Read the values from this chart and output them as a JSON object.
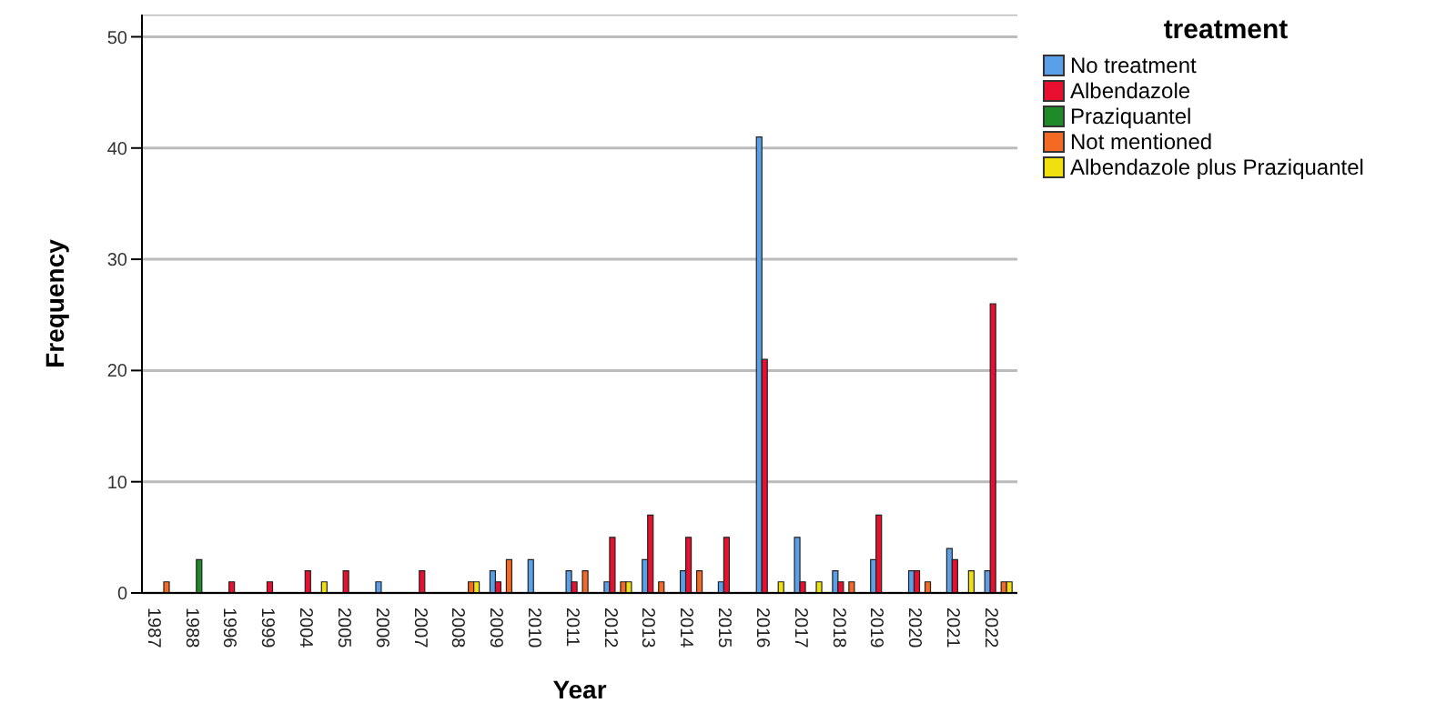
{
  "chart_data": {
    "type": "bar",
    "xlabel": "Year",
    "ylabel": "Frequency",
    "legend_title": "treatment",
    "legend": "top right",
    "grid": "y",
    "categories": [
      "1987",
      "1988",
      "1996",
      "1999",
      "2004",
      "2005",
      "2006",
      "2007",
      "2008",
      "2009",
      "2010",
      "2011",
      "2012",
      "2013",
      "2014",
      "2015",
      "2016",
      "2017",
      "2018",
      "2019",
      "2020",
      "2021",
      "2022"
    ],
    "ylim": [
      0,
      52
    ],
    "yticks": [
      0,
      10,
      20,
      30,
      40,
      50
    ],
    "series": [
      {
        "name": "No treatment",
        "color": "#5aa0e8",
        "values": [
          null,
          null,
          null,
          null,
          null,
          null,
          1,
          null,
          null,
          2,
          3,
          2,
          1,
          3,
          2,
          1,
          41,
          5,
          2,
          3,
          2,
          4,
          2
        ]
      },
      {
        "name": "Albendazole",
        "color": "#e8102e",
        "values": [
          null,
          null,
          1,
          1,
          2,
          2,
          null,
          2,
          null,
          1,
          null,
          1,
          5,
          7,
          5,
          5,
          21,
          1,
          1,
          7,
          2,
          3,
          26
        ]
      },
      {
        "name": "Praziquantel",
        "color": "#1e8a28",
        "values": [
          null,
          3,
          null,
          null,
          null,
          null,
          null,
          null,
          null,
          null,
          null,
          null,
          null,
          null,
          null,
          null,
          null,
          null,
          null,
          null,
          null,
          null,
          null
        ]
      },
      {
        "name": "Not mentioned",
        "color": "#f46a25",
        "values": [
          1,
          null,
          null,
          null,
          null,
          null,
          null,
          null,
          1,
          3,
          null,
          2,
          1,
          1,
          2,
          null,
          null,
          null,
          1,
          null,
          1,
          null,
          1
        ]
      },
      {
        "name": "Albendazole plus Praziquantel",
        "color": "#f0e010",
        "values": [
          null,
          null,
          null,
          null,
          1,
          null,
          null,
          null,
          1,
          null,
          null,
          null,
          1,
          null,
          null,
          null,
          1,
          1,
          null,
          null,
          null,
          2,
          1
        ]
      }
    ]
  }
}
